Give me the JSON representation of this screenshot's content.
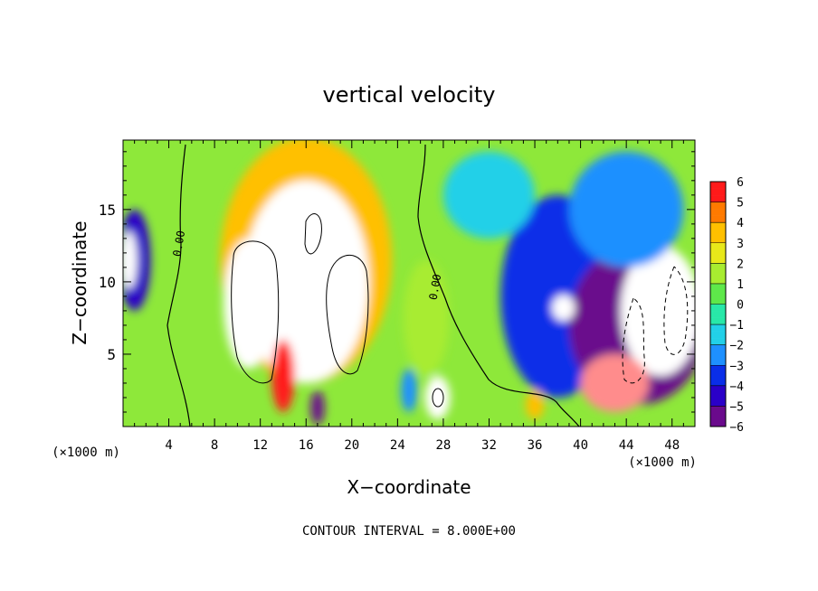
{
  "chart_data": {
    "type": "heatmap",
    "title": "vertical velocity",
    "xlabel": "X−coordinate",
    "ylabel": "Z−coordinate",
    "x_unit_left": "(×1000 m)",
    "x_unit_right": "(×1000 m)",
    "footer": "CONTOUR INTERVAL = 8.000E+00",
    "xlim": [
      0,
      50
    ],
    "ylim": [
      0,
      19.8
    ],
    "xticks": [
      4,
      8,
      12,
      16,
      20,
      24,
      28,
      32,
      36,
      40,
      44,
      48
    ],
    "yticks": [
      5,
      10,
      15
    ],
    "colorbar": {
      "min": -6,
      "max": 6,
      "ticks": [
        "6",
        "5",
        "4",
        "3",
        "2",
        "1",
        "0",
        "−1",
        "−2",
        "−3",
        "−4",
        "−5",
        "−6"
      ]
    },
    "contour_labels": [
      {
        "text": "0.00",
        "x": 5.2,
        "y": 12.6
      },
      {
        "text": "0.00",
        "x": 27.6,
        "y": 9.6
      }
    ],
    "blobs": [
      {
        "x": 16,
        "y": 11.5,
        "rx": 7.5,
        "ry": 8.5,
        "v": 3.5
      },
      {
        "x": 16,
        "y": 10,
        "rx": 5.5,
        "ry": 7.0,
        "v": 7
      },
      {
        "x": 11,
        "y": 8.5,
        "rx": 2.2,
        "ry": 4.5,
        "v": 8
      },
      {
        "x": 18.5,
        "y": 8.5,
        "rx": 2.0,
        "ry": 4.0,
        "v": 8
      },
      {
        "x": 16.5,
        "y": 13.5,
        "rx": 2.0,
        "ry": 2.3,
        "v": 7
      },
      {
        "x": 14,
        "y": 3.5,
        "rx": 1.0,
        "ry": 2.5,
        "v": 5
      },
      {
        "x": 27.5,
        "y": 2.0,
        "rx": 1.1,
        "ry": 1.5,
        "v": 8
      },
      {
        "x": 26.5,
        "y": 7.5,
        "rx": 2.0,
        "ry": 4.0,
        "v": 1.8
      },
      {
        "x": 1.0,
        "y": 11.5,
        "rx": 1.4,
        "ry": 3.5,
        "v": -4.5
      },
      {
        "x": 0.5,
        "y": 11.5,
        "rx": 0.7,
        "ry": 2.0,
        "v": 7
      },
      {
        "x": 38.0,
        "y": 9.0,
        "rx": 5.0,
        "ry": 7.0,
        "v": -4.0
      },
      {
        "x": 45.0,
        "y": 7.0,
        "rx": 6.0,
        "ry": 5.5,
        "v": -5.5
      },
      {
        "x": 47.0,
        "y": 8.0,
        "rx": 3.5,
        "ry": 4.5,
        "v": 8
      },
      {
        "x": 43.0,
        "y": 3.0,
        "rx": 3.0,
        "ry": 2.0,
        "v": 6
      },
      {
        "x": 38.5,
        "y": 8.2,
        "rx": 1.0,
        "ry": 0.9,
        "v": 8
      },
      {
        "x": 17.0,
        "y": 1.3,
        "rx": 0.6,
        "ry": 1.2,
        "v": -6
      },
      {
        "x": 25.0,
        "y": 2.5,
        "rx": 0.7,
        "ry": 1.5,
        "v": -3
      },
      {
        "x": 36.0,
        "y": 1.5,
        "rx": 0.8,
        "ry": 1.0,
        "v": 3
      },
      {
        "x": 32.0,
        "y": 16.0,
        "rx": 4.0,
        "ry": 3.0,
        "v": -2.0
      },
      {
        "x": 44.0,
        "y": 15.0,
        "rx": 5.0,
        "ry": 4.0,
        "v": -3.0
      }
    ]
  }
}
